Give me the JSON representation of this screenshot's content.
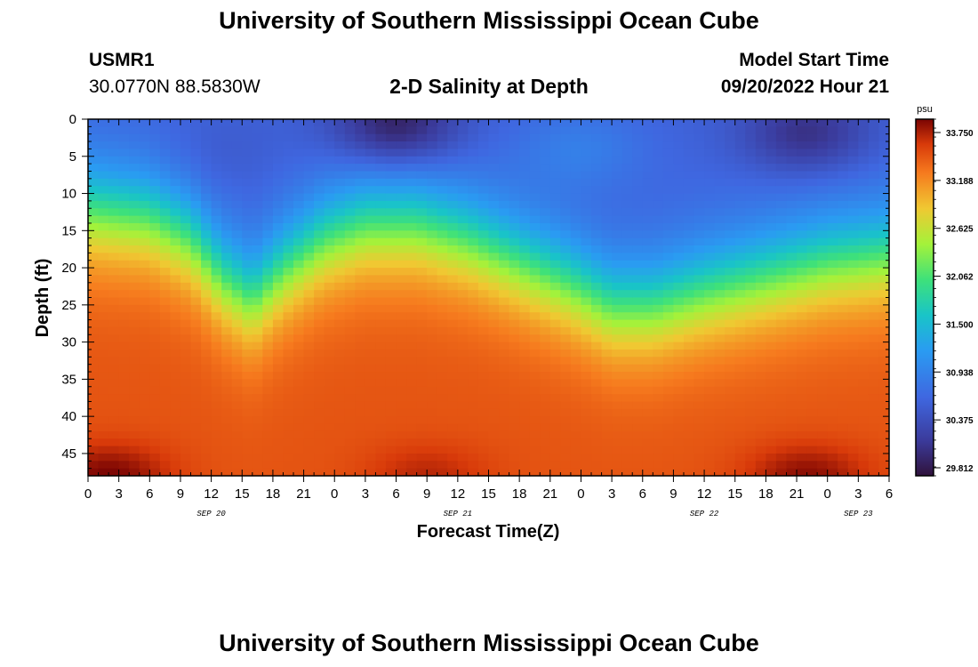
{
  "page": {
    "title_top": "University of Southern Mississippi Ocean Cube",
    "title_bottom": "University of Southern Mississippi Ocean Cube",
    "station_id": "USMR1",
    "coordinates": "30.0770N  88.5830W",
    "plot_title": "2-D Salinity at Depth",
    "model_start_label": "Model Start Time",
    "model_start_value": "09/20/2022 Hour 21"
  },
  "chart_data": {
    "type": "heatmap",
    "title": "2-D Salinity at Depth",
    "xlabel": "Forecast Time(Z)",
    "ylabel": "Depth (ft)",
    "x_tick_labels": [
      "0",
      "3",
      "6",
      "9",
      "12",
      "15",
      "18",
      "21",
      "0",
      "3",
      "6",
      "9",
      "12",
      "15",
      "18",
      "21",
      "0",
      "3",
      "6",
      "9",
      "12",
      "15",
      "18",
      "21",
      "0",
      "3",
      "6"
    ],
    "x_range_hours": [
      0,
      78
    ],
    "date_labels": [
      {
        "label": "SEP 20",
        "hour": 12
      },
      {
        "label": "SEP 21",
        "hour": 36
      },
      {
        "label": "SEP 22",
        "hour": 60
      },
      {
        "label": "SEP 23",
        "hour": 75
      }
    ],
    "y_tick_labels": [
      "0",
      "5",
      "10",
      "15",
      "20",
      "25",
      "30",
      "35",
      "40",
      "45"
    ],
    "y_range_ft": [
      0,
      48
    ],
    "colorbar": {
      "unit": "psu",
      "tick_labels": [
        "33.750",
        "33.188",
        "32.625",
        "32.062",
        "31.500",
        "30.938",
        "30.375",
        "29.812"
      ],
      "range": [
        29.6,
        34.0
      ]
    },
    "halocline_depth_ft": [
      [
        0,
        12
      ],
      [
        6,
        13
      ],
      [
        10,
        16
      ],
      [
        13,
        21
      ],
      [
        16,
        24
      ],
      [
        19,
        20
      ],
      [
        23,
        16
      ],
      [
        27,
        14
      ],
      [
        32,
        14
      ],
      [
        37,
        16
      ],
      [
        42,
        19
      ],
      [
        47,
        22
      ],
      [
        51,
        25
      ],
      [
        55,
        25
      ],
      [
        60,
        23
      ],
      [
        66,
        21
      ],
      [
        72,
        19
      ],
      [
        78,
        18
      ]
    ],
    "surface_minimum_cells": [
      {
        "hour": 30,
        "depth_ft": 1,
        "value": 29.7
      },
      {
        "hour": 70,
        "depth_ft": 2,
        "value": 29.9
      },
      {
        "hour": 12,
        "depth_ft": 5,
        "value": 30.4
      },
      {
        "hour": 48,
        "depth_ft": 4,
        "value": 30.8
      }
    ],
    "bottom_maximum_cells": [
      {
        "hour": 2,
        "depth_ft": 48,
        "value": 34.0
      },
      {
        "hour": 70,
        "depth_ft": 48,
        "value": 33.95
      },
      {
        "hour": 33,
        "depth_ft": 48,
        "value": 33.8
      }
    ],
    "surface_salinity": 30.5,
    "bottom_salinity": 33.55
  }
}
